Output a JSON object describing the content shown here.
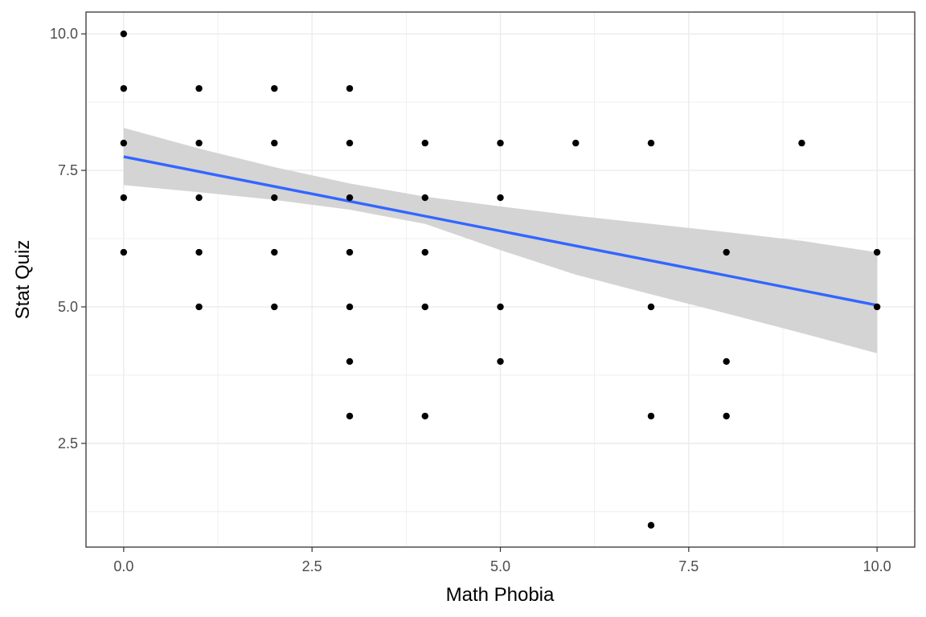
{
  "chart_data": {
    "type": "scatter",
    "title": "",
    "xlabel": "Math Phobia",
    "ylabel": "Stat Quiz",
    "xlim": [
      -0.5,
      10.5
    ],
    "ylim": [
      0.6,
      10.4
    ],
    "x_ticks": [
      0.0,
      2.5,
      5.0,
      7.5,
      10.0
    ],
    "x_tick_labels": [
      "0.0",
      "2.5",
      "5.0",
      "7.5",
      "10.0"
    ],
    "y_ticks": [
      2.5,
      5.0,
      7.5,
      10.0
    ],
    "y_tick_labels": [
      "2.5",
      "5.0",
      "7.5",
      "10.0"
    ],
    "grid": true,
    "points": [
      {
        "x": 0,
        "y": 10
      },
      {
        "x": 0,
        "y": 9
      },
      {
        "x": 0,
        "y": 8
      },
      {
        "x": 0,
        "y": 7
      },
      {
        "x": 0,
        "y": 6
      },
      {
        "x": 1,
        "y": 9
      },
      {
        "x": 1,
        "y": 8
      },
      {
        "x": 1,
        "y": 7
      },
      {
        "x": 1,
        "y": 6
      },
      {
        "x": 1,
        "y": 5
      },
      {
        "x": 2,
        "y": 9
      },
      {
        "x": 2,
        "y": 8
      },
      {
        "x": 2,
        "y": 7
      },
      {
        "x": 2,
        "y": 6
      },
      {
        "x": 2,
        "y": 5
      },
      {
        "x": 3,
        "y": 9
      },
      {
        "x": 3,
        "y": 8
      },
      {
        "x": 3,
        "y": 7
      },
      {
        "x": 3,
        "y": 6
      },
      {
        "x": 3,
        "y": 5
      },
      {
        "x": 3,
        "y": 4
      },
      {
        "x": 3,
        "y": 3
      },
      {
        "x": 4,
        "y": 8
      },
      {
        "x": 4,
        "y": 7
      },
      {
        "x": 4,
        "y": 6
      },
      {
        "x": 4,
        "y": 5
      },
      {
        "x": 4,
        "y": 3
      },
      {
        "x": 5,
        "y": 8
      },
      {
        "x": 5,
        "y": 7
      },
      {
        "x": 5,
        "y": 5
      },
      {
        "x": 5,
        "y": 4
      },
      {
        "x": 6,
        "y": 8
      },
      {
        "x": 7,
        "y": 8
      },
      {
        "x": 7,
        "y": 5
      },
      {
        "x": 7,
        "y": 3
      },
      {
        "x": 7,
        "y": 1
      },
      {
        "x": 8,
        "y": 6
      },
      {
        "x": 8,
        "y": 4
      },
      {
        "x": 8,
        "y": 3
      },
      {
        "x": 9,
        "y": 8
      },
      {
        "x": 10,
        "y": 6
      },
      {
        "x": 10,
        "y": 5
      }
    ],
    "trend_line": {
      "method": "linear regression",
      "x": [
        0,
        10
      ],
      "y": [
        7.75,
        5.03
      ],
      "confidence_band": {
        "x": [
          0,
          1,
          2,
          3,
          4,
          5,
          6,
          7,
          8,
          9,
          10
        ],
        "upper": [
          8.28,
          7.9,
          7.56,
          7.26,
          7.02,
          6.84,
          6.67,
          6.52,
          6.37,
          6.21,
          6.0
        ],
        "lower": [
          7.23,
          7.1,
          6.96,
          6.78,
          6.52,
          6.04,
          5.59,
          5.23,
          4.88,
          4.52,
          4.15
        ]
      },
      "line_color": "#3366FF",
      "band_color": "#D4D4D4"
    },
    "point_color": "#000000"
  }
}
